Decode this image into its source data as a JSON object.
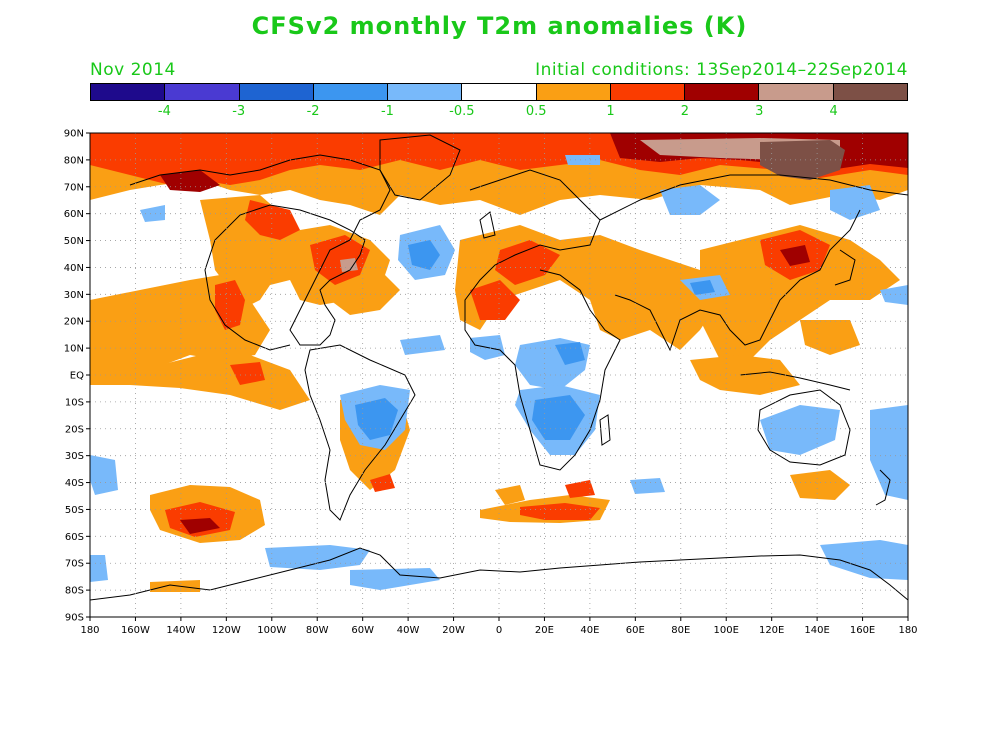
{
  "title": "CFSv2 monthly T2m anomalies (K)",
  "subtitle_left": "Nov 2014",
  "subtitle_right": "Initial conditions: 13Sep2014–22Sep2014",
  "colorbar": {
    "colors": [
      "#1e0a8c",
      "#4a3ad2",
      "#1e64d2",
      "#3c96f0",
      "#78b9fa",
      "#ffffff",
      "#fa9f14",
      "#fa3c00",
      "#a00000",
      "#c89b8c",
      "#7d5046"
    ],
    "labels": [
      "-4",
      "-3",
      "-2",
      "-1",
      "-0.5",
      "0.5",
      "1",
      "2",
      "3",
      "4"
    ]
  },
  "map": {
    "lat_labels": [
      "90N",
      "80N",
      "70N",
      "60N",
      "50N",
      "40N",
      "30N",
      "20N",
      "10N",
      "EQ",
      "10S",
      "20S",
      "30S",
      "40S",
      "50S",
      "60S",
      "70S",
      "80S",
      "90S"
    ],
    "lon_labels": [
      "180",
      "160W",
      "140W",
      "120W",
      "100W",
      "80W",
      "60W",
      "40W",
      "20W",
      "0",
      "20E",
      "40E",
      "60E",
      "80E",
      "100E",
      "120E",
      "140E",
      "160E",
      "180"
    ],
    "colors": {
      "orange": "#fa9f14",
      "red": "#fa3c00",
      "darkred": "#a00000",
      "pink": "#c89b8c",
      "brown": "#7d5046",
      "lightblue": "#78b9fa",
      "blue": "#3c96f0",
      "midblue": "#1e64d2",
      "coast": "#000000",
      "grid": "#999999"
    }
  }
}
